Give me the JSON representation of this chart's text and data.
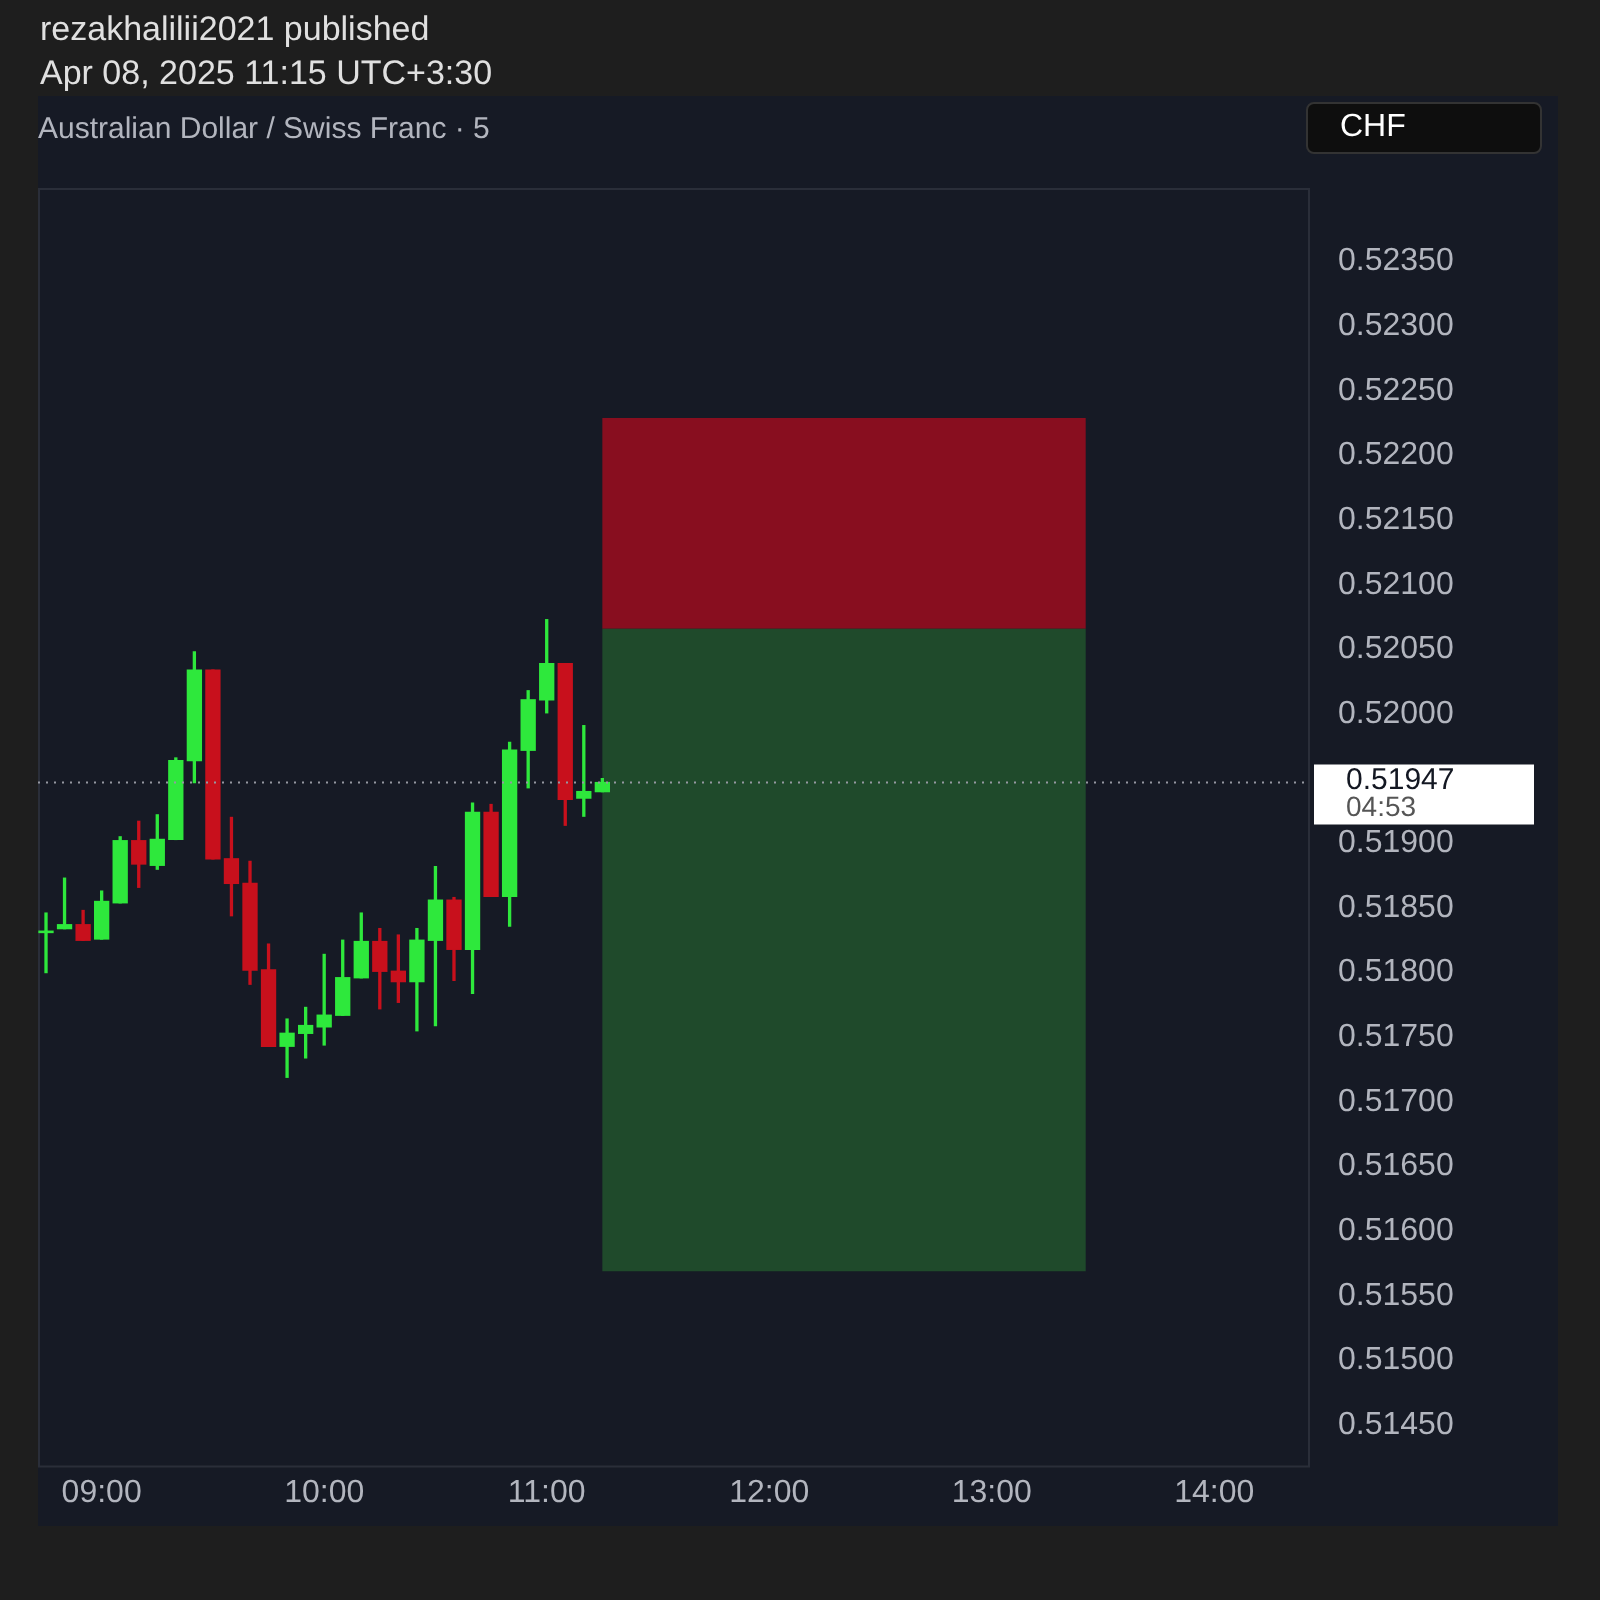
{
  "chart_data": {
    "type": "candlestick",
    "title": "Australian Dollar / Swiss Franc · 5",
    "annotations": [
      "rezakhalilii2021 published",
      "Apr 08, 2025 11:15 UTC+3:30",
      "CHF",
      "04:53"
    ],
    "x": [
      8.75,
      8.8333,
      8.9167,
      9,
      9.0833,
      9.1667,
      9.25,
      9.3333,
      9.4167,
      9.5,
      9.5833,
      9.6667,
      9.75,
      9.8333,
      9.9167,
      10,
      10.0833,
      10.1667,
      10.25,
      10.3333,
      10.4167,
      10.5,
      10.5833,
      10.6667,
      10.75,
      10.8333,
      10.9167,
      11,
      11.0833,
      11.1667,
      11.25
    ],
    "ohlc": [
      [
        0.51831,
        0.51846,
        0.518,
        0.51832
      ],
      [
        0.51834,
        0.51873,
        0.51834,
        0.51837
      ],
      [
        0.51837,
        0.51848,
        0.51825,
        0.51825
      ],
      [
        0.51826,
        0.51863,
        0.51826,
        0.51855
      ],
      [
        0.51854,
        0.51905,
        0.51854,
        0.51902
      ],
      [
        0.51902,
        0.51917,
        0.51866,
        0.51884
      ],
      [
        0.51883,
        0.51922,
        0.5188,
        0.51903
      ],
      [
        0.51903,
        0.51966,
        0.51903,
        0.51964
      ],
      [
        0.51964,
        0.52048,
        0.51947,
        0.52034
      ],
      [
        0.52034,
        0.52034,
        0.51888,
        0.51888
      ],
      [
        0.51888,
        0.5192,
        0.51844,
        0.51869
      ],
      [
        0.51869,
        0.51886,
        0.51791,
        0.51802
      ],
      [
        0.51802,
        0.51822,
        0.51743,
        0.51743
      ],
      [
        0.51743,
        0.51764,
        0.51719,
        0.51753
      ],
      [
        0.51753,
        0.51773,
        0.51734,
        0.51759
      ],
      [
        0.51758,
        0.51814,
        0.51744,
        0.51767
      ],
      [
        0.51767,
        0.51825,
        0.51767,
        0.51796
      ],
      [
        0.51796,
        0.51846,
        0.51796,
        0.51824
      ],
      [
        0.51824,
        0.51834,
        0.51772,
        0.51801
      ],
      [
        0.51801,
        0.51829,
        0.51777,
        0.51793
      ],
      [
        0.51793,
        0.51834,
        0.51755,
        0.51825
      ],
      [
        0.51825,
        0.51882,
        0.51759,
        0.51856
      ],
      [
        0.51856,
        0.51858,
        0.51794,
        0.51818
      ],
      [
        0.51818,
        0.51931,
        0.51784,
        0.51924
      ],
      [
        0.51924,
        0.5193,
        0.51859,
        0.51859
      ],
      [
        0.51859,
        0.51978,
        0.51836,
        0.51972
      ],
      [
        0.51972,
        0.52018,
        0.51943,
        0.52011
      ],
      [
        0.52011,
        0.52073,
        0.52001,
        0.52039
      ],
      [
        0.52039,
        0.52039,
        0.51914,
        0.51934
      ],
      [
        0.51935,
        0.51991,
        0.51921,
        0.5194
      ],
      [
        0.5194,
        0.5195,
        0.5194,
        0.51947
      ]
    ],
    "colors": [
      "#2ee83c",
      "#2ee83c",
      "#c8101c",
      "#2ee83c",
      "#2ee83c",
      "#c8101c",
      "#2ee83c",
      "#2ee83c",
      "#2ee83c",
      "#c8101c",
      "#c8101c",
      "#c8101c",
      "#c8101c",
      "#2ee83c",
      "#2ee83c",
      "#2ee83c",
      "#2ee83c",
      "#2ee83c",
      "#c8101c",
      "#c8101c",
      "#2ee83c",
      "#2ee83c",
      "#c8101c",
      "#2ee83c",
      "#c8101c",
      "#2ee83c",
      "#2ee83c",
      "#2ee83c",
      "#c8101c",
      "#2ee83c",
      "#2ee83c"
    ],
    "xlim": [
      8.714,
      14.43
    ],
    "xticks": [
      {
        "value": 9,
        "label": "09:00"
      },
      {
        "value": 10,
        "label": "10:00"
      },
      {
        "value": 11,
        "label": "11:00"
      },
      {
        "value": 12,
        "label": "12:00"
      },
      {
        "value": 13,
        "label": "13:00"
      },
      {
        "value": 14,
        "label": "14:00"
      }
    ],
    "ylim": [
      0.51417,
      0.52407
    ],
    "yticks": [
      {
        "value": 0.5145,
        "label": "0.51450"
      },
      {
        "value": 0.515,
        "label": "0.51500"
      },
      {
        "value": 0.5155,
        "label": "0.51550"
      },
      {
        "value": 0.516,
        "label": "0.51600"
      },
      {
        "value": 0.5165,
        "label": "0.51650"
      },
      {
        "value": 0.517,
        "label": "0.51700"
      },
      {
        "value": 0.5175,
        "label": "0.51750"
      },
      {
        "value": 0.518,
        "label": "0.51800"
      },
      {
        "value": 0.5185,
        "label": "0.51850"
      },
      {
        "value": 0.519,
        "label": "0.51900"
      },
      {
        "value": 0.52,
        "label": "0.52000"
      },
      {
        "value": 0.5205,
        "label": "0.52050"
      },
      {
        "value": 0.521,
        "label": "0.52100"
      },
      {
        "value": 0.5215,
        "label": "0.52150"
      },
      {
        "value": 0.522,
        "label": "0.52200"
      },
      {
        "value": 0.5225,
        "label": "0.52250"
      },
      {
        "value": 0.523,
        "label": "0.52300"
      },
      {
        "value": 0.5235,
        "label": "0.52350"
      }
    ],
    "ref_lines": [
      {
        "axis": "y",
        "value": 0.51947,
        "label": "0.51947",
        "line_style": "dotted",
        "color": "#9598a1"
      }
    ],
    "bands": [
      {
        "axis": "y",
        "from": 0.52066,
        "to": 0.52229,
        "color": "#880e1f"
      },
      {
        "axis": "y",
        "from": 0.51569,
        "to": 0.52066,
        "color": "#1f4a2b"
      }
    ],
    "grid": false,
    "legend": false
  }
}
